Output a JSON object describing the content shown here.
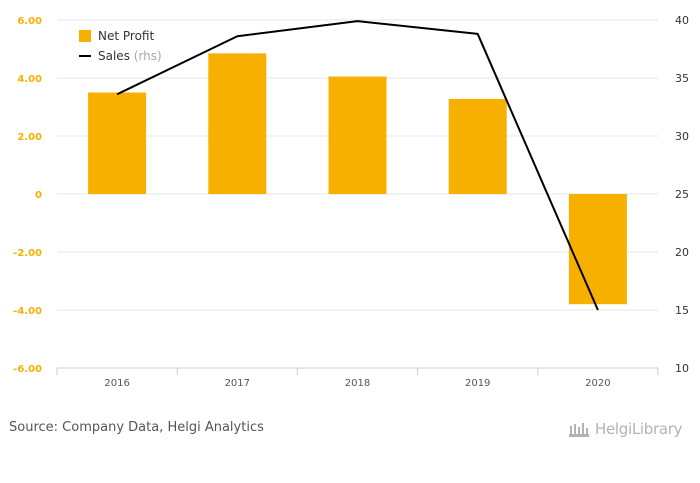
{
  "chart_data": {
    "type": "bar",
    "categories": [
      "2016",
      "2017",
      "2018",
      "2019",
      "2020"
    ],
    "series": [
      {
        "name": "Net Profit",
        "type": "bar",
        "axis": "left",
        "color": "#f8b000",
        "values": [
          3.5,
          4.85,
          4.05,
          3.28,
          -3.8
        ]
      },
      {
        "name": "Sales",
        "type": "line",
        "axis": "right",
        "color": "#000000",
        "values": [
          33.6,
          38.6,
          39.9,
          38.8,
          15.0
        ]
      }
    ],
    "legend": [
      {
        "label": "Net Profit",
        "suffix": ""
      },
      {
        "label": "Sales",
        "suffix": "(rhs)"
      }
    ],
    "y_left": {
      "ylim": [
        -6,
        6
      ],
      "ticks": [
        "6.00",
        "4.00",
        "2.00",
        "0",
        "-2.00",
        "-4.00",
        "-6.00"
      ],
      "tick_values": [
        6,
        4,
        2,
        0,
        -2,
        -4,
        -6
      ],
      "tick_color": "#f8b000"
    },
    "y_right": {
      "ylim": [
        10,
        40
      ],
      "ticks": [
        "40",
        "35",
        "30",
        "25",
        "20",
        "15",
        "10"
      ],
      "tick_values": [
        40,
        35,
        30,
        25,
        20,
        15,
        10
      ]
    },
    "grid": true,
    "legend_position": "top-left"
  },
  "footer": {
    "source": "Source: Company Data, Helgi Analytics",
    "brand": "HelgiLibrary"
  }
}
